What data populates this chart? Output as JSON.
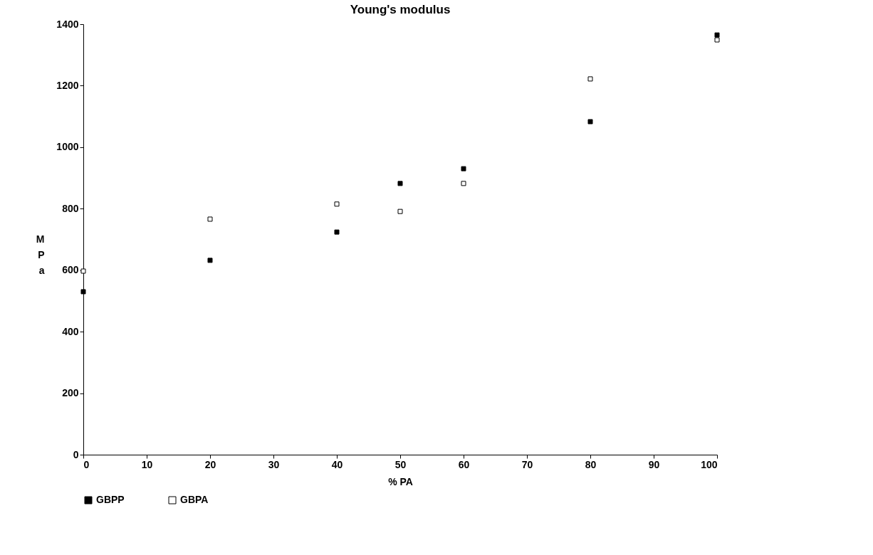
{
  "chart_data": {
    "type": "scatter",
    "title": "Young's modulus",
    "xlabel": "% PA",
    "ylabel": "MPa",
    "x": [
      0,
      20,
      40,
      50,
      60,
      80,
      100
    ],
    "series": [
      {
        "name": "GBPP",
        "color": "#000000",
        "values": [
          530,
          632,
          724,
          882,
          930,
          1083,
          1365
        ]
      },
      {
        "name": "GBPA",
        "color": "#ffffff",
        "values": [
          597,
          766,
          815,
          791,
          882,
          1222,
          1349
        ]
      }
    ],
    "xlim": [
      0,
      100
    ],
    "xticks": [
      0,
      10,
      20,
      30,
      40,
      50,
      60,
      70,
      80,
      90,
      100
    ],
    "ylim": [
      0,
      1400
    ],
    "yticks": [
      0,
      200,
      400,
      600,
      800,
      1000,
      1200,
      1400
    ],
    "grid": false,
    "legend": "bottom",
    "marker": "square"
  }
}
